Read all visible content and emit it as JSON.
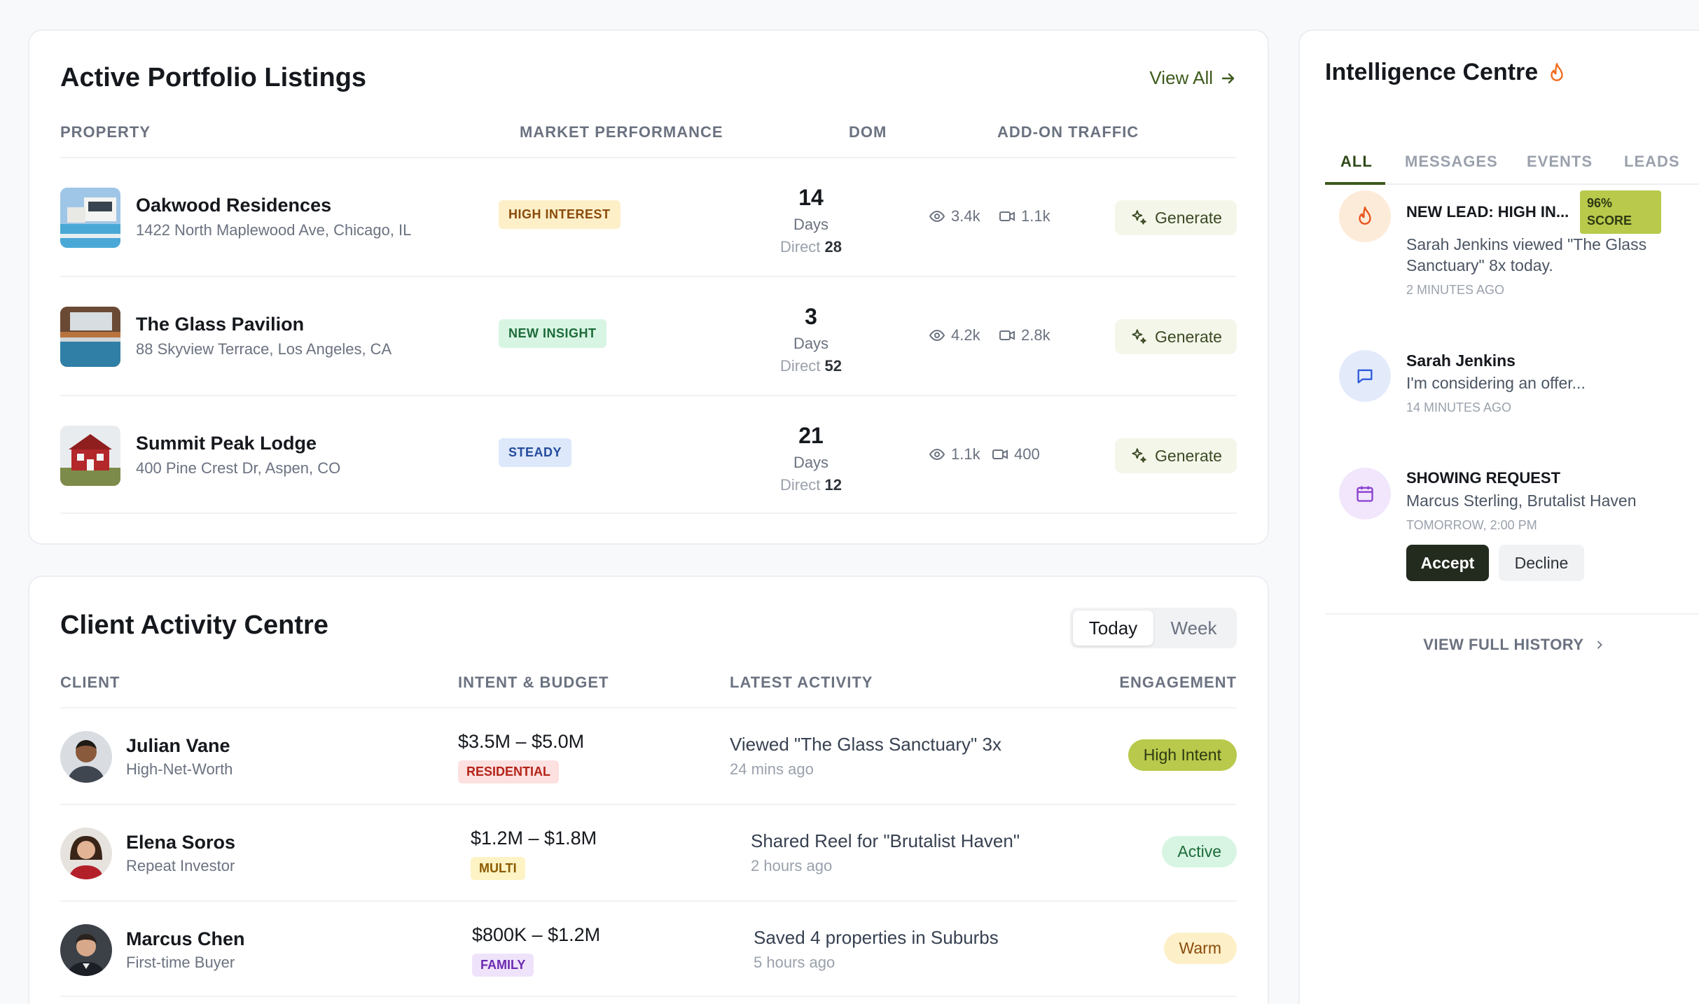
{
  "listings": {
    "title": "Active Portfolio Listings",
    "view_all": "View All",
    "columns": {
      "property": "PROPERTY",
      "market": "MARKET PERFORMANCE",
      "dom": "DOM",
      "traffic": "ADD-ON TRAFFIC"
    },
    "days_label": "Days",
    "direct_label": "Direct",
    "generate_label": "Generate",
    "rows": [
      {
        "name": "Oakwood Residences",
        "address": "1422 North Maplewood Ave, Chicago, IL",
        "badge": "HIGH INTEREST",
        "dom": "14",
        "direct": "28",
        "views": "3.4k",
        "videos": "1.1k"
      },
      {
        "name": "The Glass Pavilion",
        "address": "88 Skyview Terrace, Los Angeles, CA",
        "badge": "NEW INSIGHT",
        "dom": "3",
        "direct": "52",
        "views": "4.2k",
        "videos": "2.8k"
      },
      {
        "name": "Summit Peak Lodge",
        "address": "400 Pine Crest Dr, Aspen, CO",
        "badge": "STEADY",
        "dom": "21",
        "direct": "12",
        "views": "1.1k",
        "videos": "400"
      }
    ]
  },
  "activity": {
    "title": "Client Activity Centre",
    "toggle": {
      "today": "Today",
      "week": "Week"
    },
    "columns": {
      "client": "CLIENT",
      "intent": "INTENT & BUDGET",
      "latest": "LATEST ACTIVITY",
      "engagement": "ENGAGEMENT"
    },
    "rows": [
      {
        "name": "Julian Vane",
        "type": "High-Net-Worth",
        "budget": "$3.5M – $5.0M",
        "tag": "RESIDENTIAL",
        "activity": "Viewed \"The Glass Sanctuary\" 3x",
        "time": "24 mins ago",
        "engagement": "High Intent"
      },
      {
        "name": "Elena Soros",
        "type": "Repeat Investor",
        "budget": "$1.2M – $1.8M",
        "tag": "MULTI",
        "activity": "Shared Reel for \"Brutalist Haven\"",
        "time": "2 hours ago",
        "engagement": "Active"
      },
      {
        "name": "Marcus Chen",
        "type": "First-time Buyer",
        "budget": "$800K – $1.2M",
        "tag": "FAMILY",
        "activity": "Saved 4 properties in Suburbs",
        "time": "5 hours ago",
        "engagement": "Warm"
      }
    ]
  },
  "intel": {
    "title": "Intelligence Centre",
    "tabs": [
      "ALL",
      "MESSAGES",
      "EVENTS",
      "LEADS"
    ],
    "feed": [
      {
        "title": "NEW LEAD: HIGH IN...",
        "score_line1": "96%",
        "score_line2": "SCORE",
        "body": "Sarah Jenkins viewed \"The Glass Sanctuary\" 8x today.",
        "time": "2 MINUTES AGO"
      },
      {
        "title": "Sarah Jenkins",
        "body": "I'm considering an offer...",
        "time": "14 MINUTES AGO"
      },
      {
        "title": "SHOWING REQUEST",
        "body": "Marcus Sterling, Brutalist Haven",
        "time": "TOMORROW, 2:00 PM",
        "accept": "Accept",
        "decline": "Decline"
      }
    ],
    "history": "VIEW FULL HISTORY"
  },
  "colors": {
    "accent_green": "#3e5a1d",
    "lime": "#b8c94c",
    "flame": "#f26b1d"
  }
}
